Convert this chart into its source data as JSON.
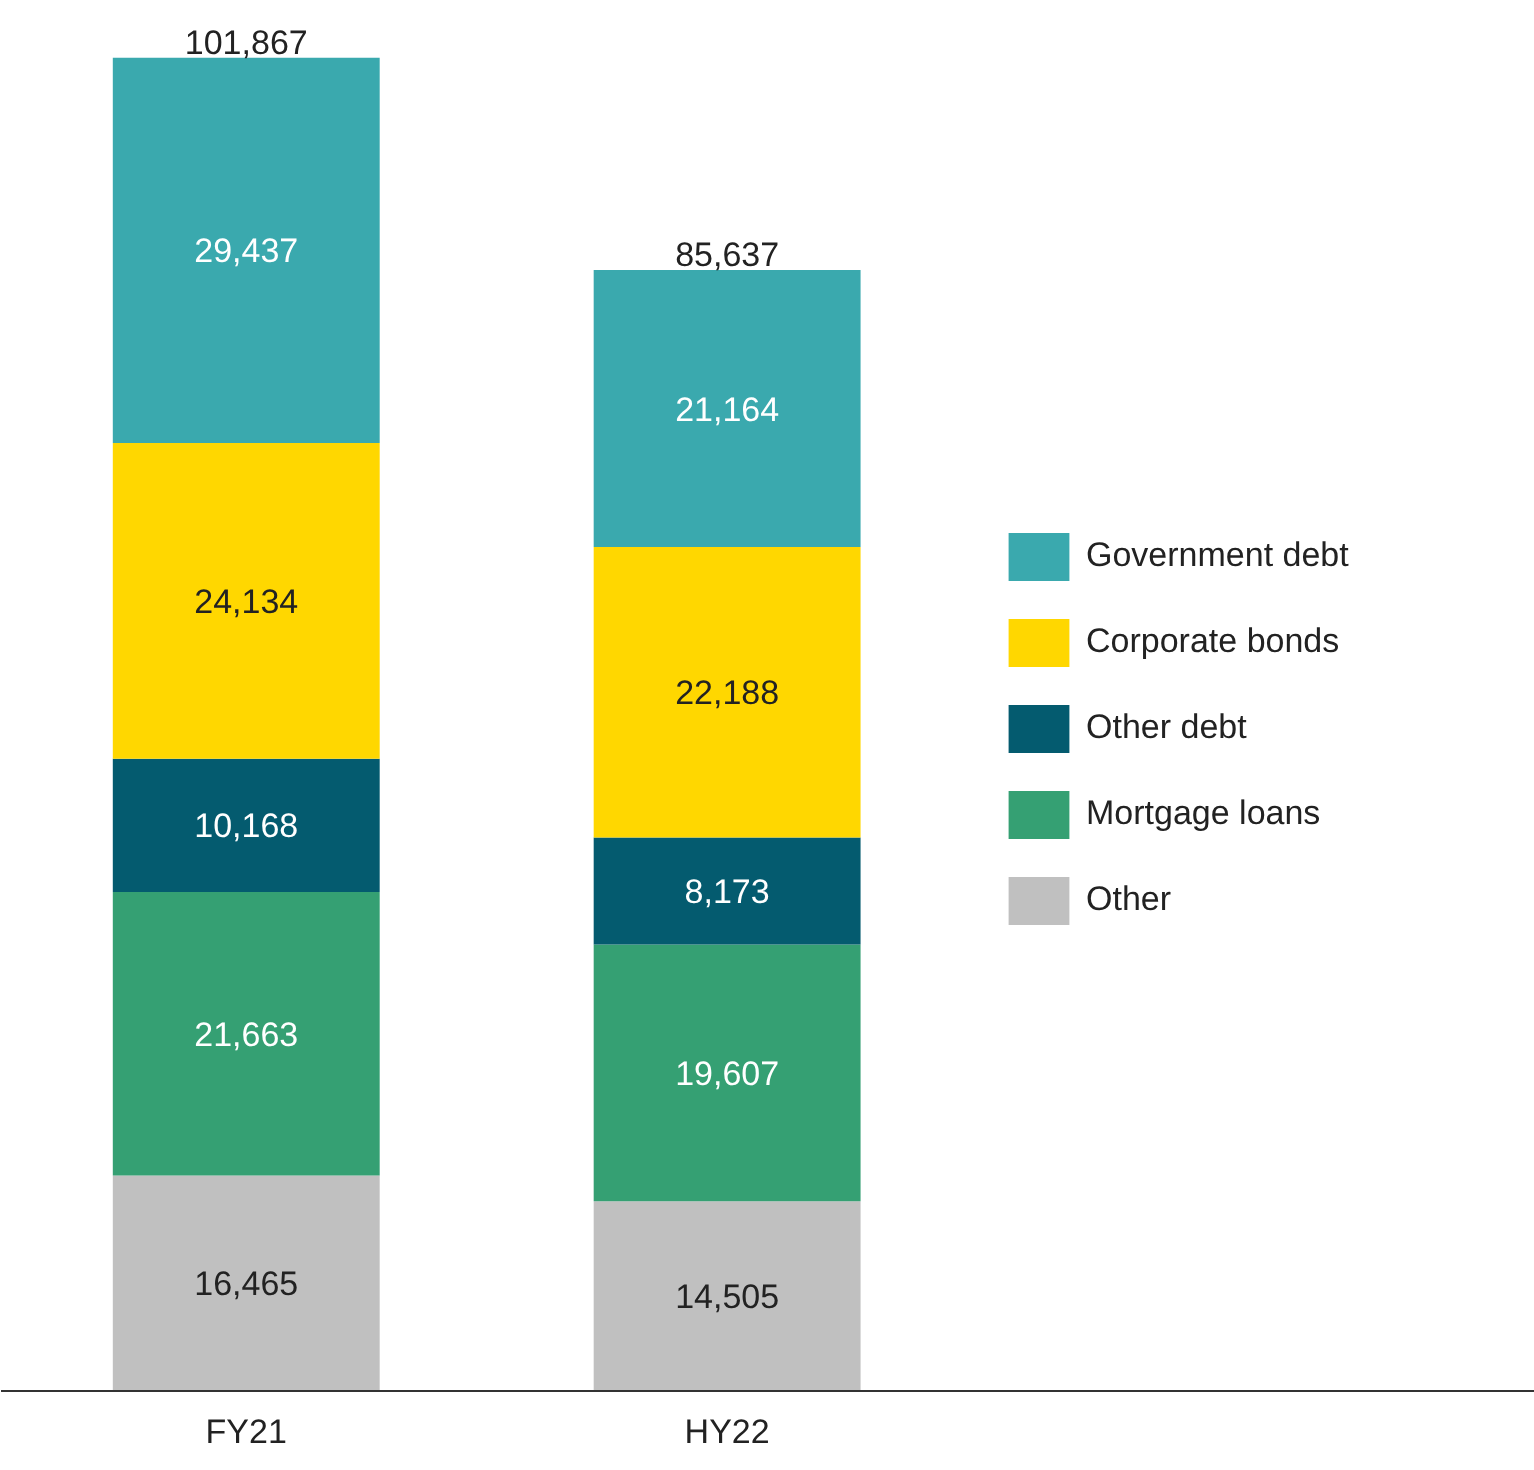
{
  "chart_data": {
    "type": "bar",
    "stacked": true,
    "categories": [
      "FY21",
      "HY22"
    ],
    "series": [
      {
        "name": "Other",
        "color": "#c0c0c0",
        "values": [
          16465,
          14505
        ],
        "value_labels": [
          "16,465",
          "14,505"
        ]
      },
      {
        "name": "Mortgage loans",
        "color": "#35a073",
        "values": [
          21663,
          19607
        ],
        "value_labels": [
          "21,663",
          "19,607"
        ]
      },
      {
        "name": "Other debt",
        "color": "#045b6f",
        "values": [
          10168,
          8173
        ],
        "value_labels": [
          "10,168",
          "8,173"
        ]
      },
      {
        "name": "Corporate bonds",
        "color": "#ffd700",
        "values": [
          24134,
          22188
        ],
        "value_labels": [
          "24,134",
          "22,188"
        ]
      },
      {
        "name": "Government debt",
        "color": "#3aa9ae",
        "values": [
          29437,
          21164
        ],
        "value_labels": [
          "29,437",
          "21,164"
        ]
      }
    ],
    "totals": [
      "101,867",
      "85,637"
    ],
    "legend": "right",
    "grid": false
  }
}
